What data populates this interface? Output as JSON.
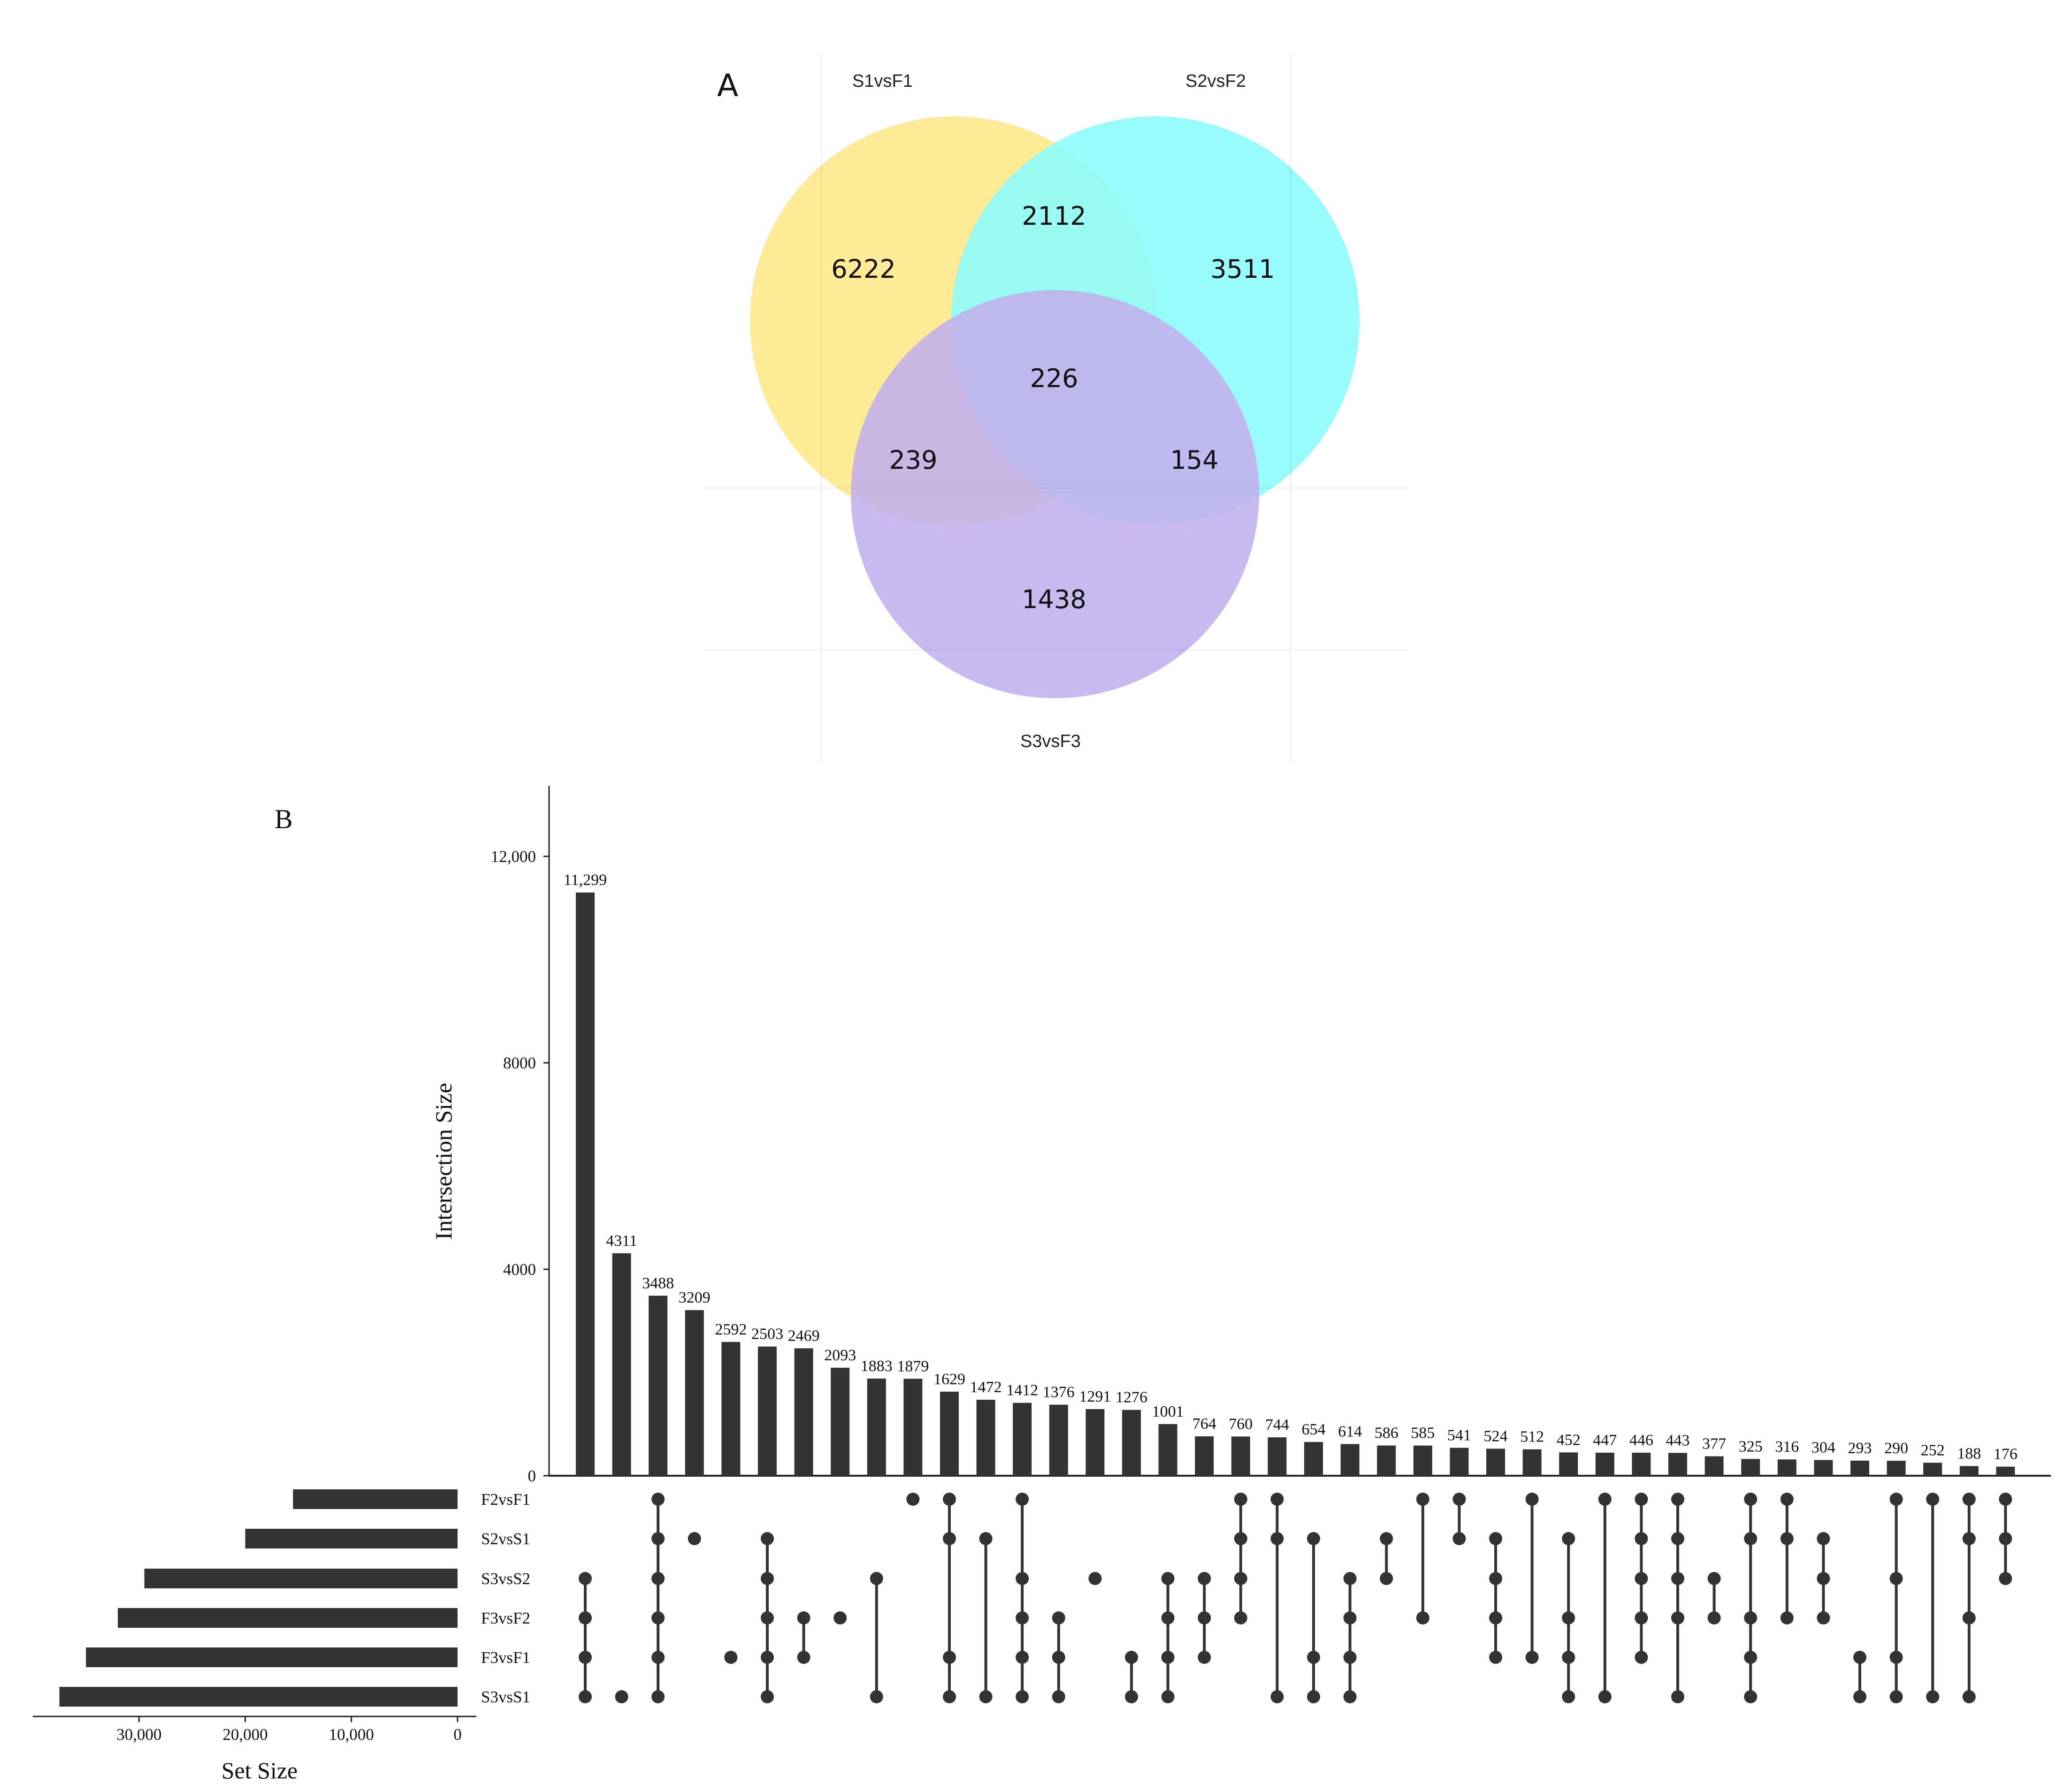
{
  "venn": {
    "panel_label": "A",
    "sets": [
      {
        "name": "S1vsF1",
        "color": "#fde98a"
      },
      {
        "name": "S2vsF2",
        "color": "#8efcfc"
      },
      {
        "name": "S3vsF3",
        "color": "#c2b1ec"
      }
    ],
    "regions": {
      "S1_only": "6222",
      "S2_only": "3511",
      "S3_only": "1438",
      "S1_S2": "2112",
      "S1_S3": "239",
      "S2_S3": "154",
      "all": "226"
    }
  },
  "chart_data": {
    "type": "bar",
    "subtype": "upset",
    "panel_label": "B",
    "ylabel": "Intersection Size",
    "ylim": [
      0,
      13000
    ],
    "yticks": [
      0,
      4000,
      8000,
      12000
    ],
    "ytick_labels": [
      "0",
      "4000",
      "8000",
      "12,000"
    ],
    "sets": [
      "F2vsF1",
      "S2vsS1",
      "S3vsS2",
      "F3vsF2",
      "F3vsF1",
      "S3vsS1"
    ],
    "set_sizes": [
      15500,
      20000,
      29500,
      32000,
      35000,
      37500
    ],
    "set_size_label": "Set Size",
    "set_size_ticks": [
      30000,
      20000,
      10000,
      0
    ],
    "set_size_tick_labels": [
      "30,000",
      "20,000",
      "10,000",
      "0"
    ],
    "set_size_xlim": [
      0,
      40000
    ],
    "values": [
      11299,
      4311,
      3488,
      3209,
      2592,
      2503,
      2469,
      2093,
      1883,
      1879,
      1629,
      1472,
      1412,
      1376,
      1291,
      1276,
      1001,
      764,
      760,
      744,
      654,
      614,
      586,
      585,
      541,
      524,
      512,
      452,
      447,
      446,
      443,
      377,
      325,
      316,
      304,
      293,
      290,
      252,
      188,
      176
    ],
    "bar_labels": [
      "11,299",
      "4311",
      "3488",
      "3209",
      "2592",
      "2503",
      "2469",
      "2093",
      "1883",
      "1879",
      "1629",
      "1472",
      "1412",
      "1376",
      "1291",
      "1276",
      "1001",
      "764",
      "760",
      "744",
      "654",
      "614",
      "586",
      "585",
      "541",
      "524",
      "512",
      "452",
      "447",
      "446",
      "443",
      "377",
      "325",
      "316",
      "304",
      "293",
      "290",
      "252",
      "188",
      "176"
    ],
    "memberships": [
      [
        "S3vsS2",
        "F3vsF2",
        "F3vsF1",
        "S3vsS1"
      ],
      [
        "S3vsS1"
      ],
      [
        "F2vsF1",
        "S2vsS1",
        "S3vsS2",
        "F3vsF2",
        "F3vsF1",
        "S3vsS1"
      ],
      [
        "S2vsS1"
      ],
      [
        "F3vsF1"
      ],
      [
        "S2vsS1",
        "S3vsS2",
        "F3vsF2",
        "F3vsF1",
        "S3vsS1"
      ],
      [
        "F3vsF2",
        "F3vsF1"
      ],
      [
        "F3vsF2"
      ],
      [
        "S3vsS2",
        "S3vsS1"
      ],
      [
        "F2vsF1"
      ],
      [
        "F2vsF1",
        "S2vsS1",
        "F3vsF1",
        "S3vsS1"
      ],
      [
        "S2vsS1",
        "S3vsS1"
      ],
      [
        "F2vsF1",
        "S3vsS2",
        "F3vsF2",
        "F3vsF1",
        "S3vsS1"
      ],
      [
        "F3vsF2",
        "F3vsF1",
        "S3vsS1"
      ],
      [
        "S3vsS2"
      ],
      [
        "F3vsF1",
        "S3vsS1"
      ],
      [
        "S3vsS2",
        "F3vsF2",
        "F3vsF1",
        "S3vsS1"
      ],
      [
        "S3vsS2",
        "F3vsF2",
        "F3vsF1"
      ],
      [
        "F2vsF1",
        "S2vsS1",
        "S3vsS2",
        "F3vsF2"
      ],
      [
        "F2vsF1",
        "S2vsS1",
        "S3vsS1"
      ],
      [
        "S2vsS1",
        "F3vsF1",
        "S3vsS1"
      ],
      [
        "S3vsS2",
        "F3vsF2",
        "F3vsF1",
        "S3vsS1"
      ],
      [
        "S2vsS1",
        "S3vsS2"
      ],
      [
        "F2vsF1",
        "F3vsF2"
      ],
      [
        "F2vsF1",
        "S2vsS1"
      ],
      [
        "S2vsS1",
        "S3vsS2",
        "F3vsF2",
        "F3vsF1"
      ],
      [
        "F2vsF1",
        "F3vsF1"
      ],
      [
        "S2vsS1",
        "F3vsF2",
        "F3vsF1",
        "S3vsS1"
      ],
      [
        "F2vsF1",
        "S3vsS1"
      ],
      [
        "F2vsF1",
        "S2vsS1",
        "S3vsS2",
        "F3vsF2",
        "F3vsF1"
      ],
      [
        "F2vsF1",
        "S2vsS1",
        "S3vsS2",
        "F3vsF2",
        "S3vsS1"
      ],
      [
        "S3vsS2",
        "F3vsF2"
      ],
      [
        "F2vsF1",
        "S2vsS1",
        "F3vsF2",
        "F3vsF1",
        "S3vsS1"
      ],
      [
        "F2vsF1",
        "S2vsS1",
        "F3vsF2"
      ],
      [
        "S2vsS1",
        "S3vsS2",
        "F3vsF2"
      ],
      [
        "F3vsF1",
        "S3vsS1"
      ],
      [
        "F2vsF1",
        "S3vsS2",
        "F3vsF1",
        "S3vsS1"
      ],
      [
        "F2vsF1",
        "S3vsS1"
      ],
      [
        "F2vsF1",
        "S2vsS1",
        "F3vsF2",
        "S3vsS1"
      ],
      [
        "F2vsF1",
        "S2vsS1",
        "S3vsS2"
      ]
    ]
  }
}
